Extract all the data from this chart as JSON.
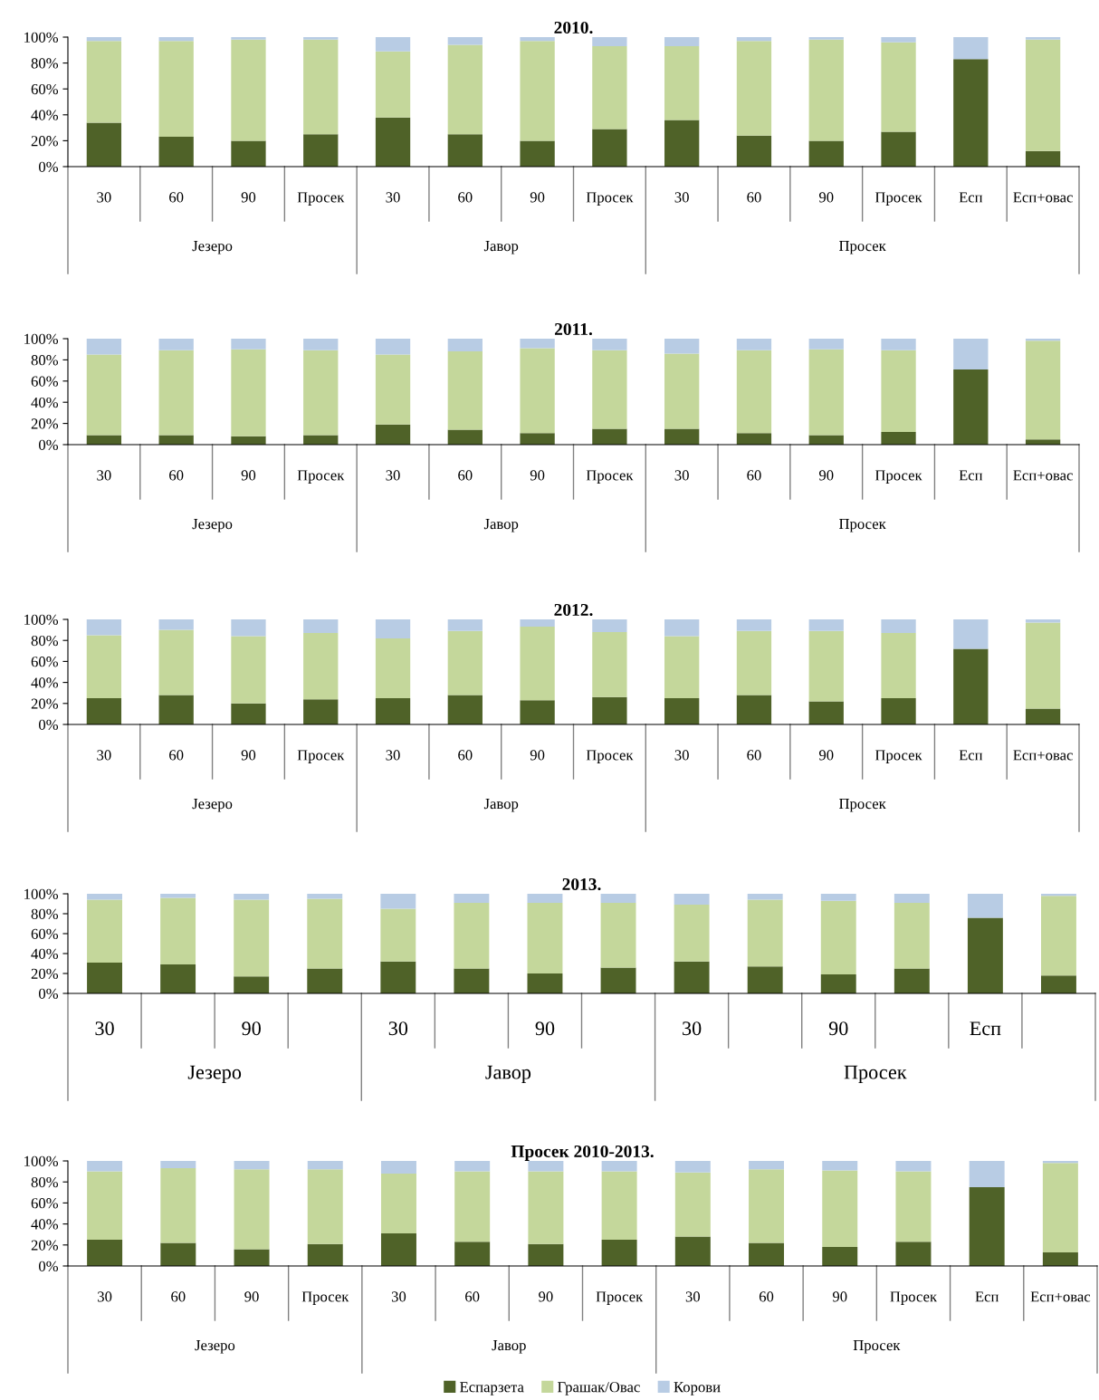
{
  "chart_data": [
    {
      "type": "bar",
      "title": "2010.",
      "stacked": true,
      "legend": false,
      "grid": false,
      "categories": [
        "30",
        "60",
        "90",
        "Просек",
        "30",
        "60",
        "90",
        "Просек",
        "30",
        "60",
        "90",
        "Просек",
        "Есп",
        "Есп+овас"
      ],
      "annotations": [
        "Језеро",
        "Јавор",
        "Просек"
      ],
      "ylim": [
        0,
        100
      ],
      "yticks": [
        {
          "value": 0,
          "label": "0%"
        },
        {
          "value": 20,
          "label": "20%"
        },
        {
          "value": 40,
          "label": "40%"
        },
        {
          "value": 60,
          "label": "60%"
        },
        {
          "value": 80,
          "label": "80%"
        },
        {
          "value": 100,
          "label": "100%"
        }
      ],
      "series": [
        {
          "color": "#4f6228",
          "values": [
            34,
            23,
            20,
            25,
            38,
            25,
            20,
            29,
            36,
            24,
            20,
            27,
            83,
            12
          ]
        },
        {
          "color": "#c4d79b",
          "values": [
            63,
            74,
            78,
            73,
            51,
            69,
            77,
            64,
            57,
            73,
            78,
            69,
            0,
            86
          ]
        },
        {
          "color": "#b8cce4",
          "values": [
            3,
            3,
            2,
            2,
            11,
            6,
            3,
            7,
            7,
            3,
            2,
            4,
            17,
            2
          ]
        }
      ]
    },
    {
      "type": "bar",
      "title": "2011.",
      "stacked": true,
      "legend": false,
      "grid": false,
      "categories": [
        "30",
        "60",
        "90",
        "Просек",
        "30",
        "60",
        "90",
        "Просек",
        "30",
        "60",
        "90",
        "Просек",
        "Есп",
        "Есп+овас"
      ],
      "annotations": [
        "Језеро",
        "Јавор",
        "Просек"
      ],
      "ylim": [
        0,
        100
      ],
      "yticks": [
        {
          "value": 0,
          "label": "0%"
        },
        {
          "value": 20,
          "label": "20%"
        },
        {
          "value": 40,
          "label": "40%"
        },
        {
          "value": 60,
          "label": "60%"
        },
        {
          "value": 80,
          "label": "80%"
        },
        {
          "value": 100,
          "label": "100%"
        }
      ],
      "series": [
        {
          "color": "#4f6228",
          "values": [
            9,
            9,
            8,
            9,
            19,
            14,
            11,
            15,
            15,
            11,
            9,
            12,
            71,
            5
          ]
        },
        {
          "color": "#c4d79b",
          "values": [
            76,
            80,
            82,
            80,
            66,
            74,
            80,
            74,
            71,
            78,
            81,
            77,
            0,
            93
          ]
        },
        {
          "color": "#b8cce4",
          "values": [
            15,
            11,
            10,
            11,
            15,
            12,
            9,
            11,
            14,
            11,
            10,
            11,
            29,
            2
          ]
        }
      ]
    },
    {
      "type": "bar",
      "title": "2012.",
      "stacked": true,
      "legend": false,
      "grid": false,
      "categories": [
        "30",
        "60",
        "90",
        "Просек",
        "30",
        "60",
        "90",
        "Просек",
        "30",
        "60",
        "90",
        "Просек",
        "Есп",
        "Есп+овас"
      ],
      "annotations": [
        "Језеро",
        "Јавор",
        "Просек"
      ],
      "ylim": [
        0,
        100
      ],
      "yticks": [
        {
          "value": 0,
          "label": "0%"
        },
        {
          "value": 20,
          "label": "20%"
        },
        {
          "value": 40,
          "label": "40%"
        },
        {
          "value": 60,
          "label": "60%"
        },
        {
          "value": 80,
          "label": "80%"
        },
        {
          "value": 100,
          "label": "100%"
        }
      ],
      "series": [
        {
          "color": "#4f6228",
          "values": [
            25,
            28,
            20,
            24,
            25,
            28,
            23,
            26,
            25,
            28,
            22,
            25,
            72,
            15
          ]
        },
        {
          "color": "#c4d79b",
          "values": [
            60,
            62,
            64,
            63,
            57,
            61,
            70,
            62,
            59,
            61,
            67,
            62,
            0,
            82
          ]
        },
        {
          "color": "#b8cce4",
          "values": [
            15,
            10,
            16,
            13,
            18,
            11,
            7,
            12,
            16,
            11,
            11,
            13,
            28,
            3
          ]
        }
      ]
    },
    {
      "type": "bar",
      "title": "2013.",
      "stacked": true,
      "legend": false,
      "grid": false,
      "categories": [
        "30",
        null,
        "90",
        null,
        "30",
        null,
        "90",
        null,
        "30",
        null,
        "90",
        null,
        "Есп",
        null
      ],
      "annotations": [
        "Језеро",
        "Јавор",
        "Просек"
      ],
      "ylim": [
        0,
        100
      ],
      "yticks": [
        {
          "value": 0,
          "label": "0%"
        },
        {
          "value": 20,
          "label": "20%"
        },
        {
          "value": 40,
          "label": "40%"
        },
        {
          "value": 60,
          "label": "60%"
        },
        {
          "value": 80,
          "label": "80%"
        },
        {
          "value": 100,
          "label": "100%"
        }
      ],
      "series": [
        {
          "color": "#4f6228",
          "values": [
            31,
            29,
            17,
            25,
            32,
            25,
            20,
            26,
            32,
            27,
            19,
            25,
            76,
            18
          ]
        },
        {
          "color": "#c4d79b",
          "values": [
            63,
            67,
            77,
            70,
            53,
            66,
            71,
            65,
            57,
            67,
            74,
            66,
            0,
            80
          ]
        },
        {
          "color": "#b8cce4",
          "values": [
            6,
            4,
            6,
            5,
            15,
            9,
            9,
            9,
            11,
            6,
            7,
            9,
            24,
            2
          ]
        }
      ]
    },
    {
      "type": "bar",
      "title": "Просек 2010-2013.",
      "stacked": true,
      "legend": "bottom",
      "grid": false,
      "categories": [
        "30",
        "60",
        "90",
        "Просек",
        "30",
        "60",
        "90",
        "Просек",
        "30",
        "60",
        "90",
        "Просек",
        "Есп",
        "Есп+овас"
      ],
      "annotations": [
        "Језеро",
        "Јавор",
        "Просек"
      ],
      "ylim": [
        0,
        100
      ],
      "yticks": [
        {
          "value": 0,
          "label": "0%"
        },
        {
          "value": 20,
          "label": "20%"
        },
        {
          "value": 40,
          "label": "40%"
        },
        {
          "value": 60,
          "label": "60%"
        },
        {
          "value": 80,
          "label": "80%"
        },
        {
          "value": 100,
          "label": "100%"
        }
      ],
      "series": [
        {
          "name": "Еспарзета",
          "color": "#4f6228",
          "values": [
            25,
            22,
            16,
            21,
            31,
            23,
            21,
            25,
            28,
            22,
            18,
            23,
            75,
            13
          ]
        },
        {
          "name": "Грашак/Овас",
          "color": "#c4d79b",
          "values": [
            65,
            71,
            76,
            71,
            57,
            67,
            69,
            65,
            61,
            70,
            73,
            67,
            0,
            85
          ]
        },
        {
          "name": "Корови",
          "color": "#b8cce4",
          "values": [
            10,
            7,
            8,
            8,
            12,
            10,
            10,
            10,
            11,
            8,
            9,
            10,
            25,
            2
          ]
        }
      ]
    }
  ]
}
